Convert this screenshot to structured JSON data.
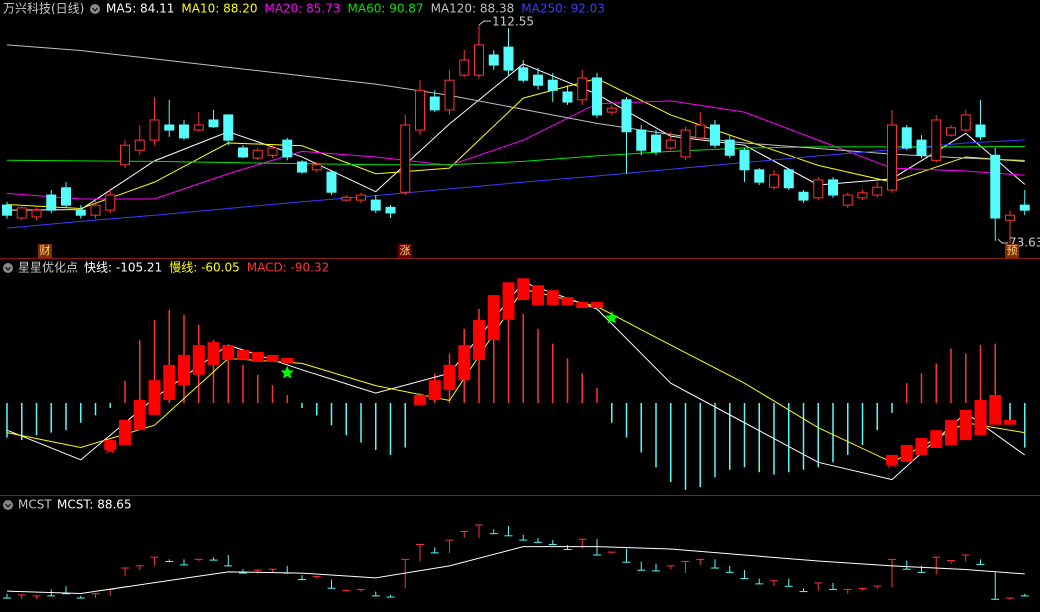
{
  "chart_data": [
    {
      "type": "candlestick",
      "title": "万兴科技(日线)",
      "up_color": "#ff3232",
      "down_color": "#54fcfc",
      "ylim": [
        70.96,
        114.34
      ],
      "candles": [
        [
          80.4,
          81.0,
          78.0,
          78.6
        ],
        [
          78.1,
          80.4,
          77.7,
          79.9
        ],
        [
          78.3,
          80.0,
          77.7,
          79.5
        ],
        [
          82.2,
          83.1,
          79.0,
          79.5
        ],
        [
          83.5,
          84.5,
          80.0,
          80.4
        ],
        [
          79.5,
          80.4,
          78.0,
          78.6
        ],
        [
          78.6,
          81.3,
          78.0,
          80.4
        ],
        [
          79.5,
          83.1,
          79.0,
          82.2
        ],
        [
          87.6,
          92.0,
          87.0,
          91.1
        ],
        [
          90.2,
          94.7,
          89.3,
          92.0
        ],
        [
          92.0,
          99.7,
          91.1,
          95.6
        ],
        [
          94.7,
          99.2,
          92.6,
          93.8
        ],
        [
          94.7,
          95.6,
          92.0,
          92.4
        ],
        [
          93.8,
          97.0,
          93.5,
          94.7
        ],
        [
          95.6,
          97.4,
          94.2,
          94.4
        ],
        [
          96.5,
          96.5,
          91.1,
          92.0
        ],
        [
          90.6,
          91.1,
          88.8,
          89.0
        ],
        [
          88.8,
          90.6,
          88.4,
          90.2
        ],
        [
          89.3,
          91.1,
          88.8,
          90.6
        ],
        [
          92.0,
          92.4,
          88.4,
          89.0
        ],
        [
          88.1,
          88.4,
          86.0,
          86.3
        ],
        [
          86.7,
          88.1,
          86.3,
          87.6
        ],
        [
          86.3,
          86.7,
          82.2,
          82.7
        ],
        [
          81.3,
          82.2,
          81.0,
          81.8
        ],
        [
          81.3,
          82.6,
          80.8,
          82.2
        ],
        [
          81.3,
          82.2,
          79.0,
          79.5
        ],
        [
          80.0,
          80.4,
          78.1,
          79.0
        ],
        [
          82.7,
          96.5,
          82.2,
          94.7
        ],
        [
          93.8,
          102.7,
          92.9,
          100.9
        ],
        [
          99.7,
          100.9,
          97.0,
          97.4
        ],
        [
          97.4,
          104.5,
          96.5,
          102.7
        ],
        [
          103.6,
          108.1,
          103.2,
          106.3
        ],
        [
          103.6,
          112.55,
          103.0,
          109.0
        ],
        [
          107.2,
          108.1,
          104.5,
          105.4
        ],
        [
          108.6,
          112.0,
          103.6,
          104.5
        ],
        [
          104.9,
          106.3,
          102.3,
          102.7
        ],
        [
          103.6,
          104.9,
          101.0,
          101.8
        ],
        [
          102.7,
          104.0,
          98.8,
          100.9
        ],
        [
          100.6,
          101.8,
          98.3,
          98.8
        ],
        [
          99.2,
          104.5,
          98.3,
          103.1
        ],
        [
          103.1,
          104.0,
          96.0,
          96.5
        ],
        [
          97.0,
          98.3,
          96.5,
          97.7
        ],
        [
          99.2,
          99.7,
          86.0,
          93.5
        ],
        [
          93.8,
          94.7,
          89.3,
          90.2
        ],
        [
          92.9,
          93.8,
          89.3,
          89.9
        ],
        [
          90.6,
          93.5,
          90.2,
          92.0
        ],
        [
          89.0,
          94.4,
          88.4,
          93.8
        ],
        [
          92.4,
          97.0,
          92.0,
          94.7
        ],
        [
          94.7,
          95.6,
          90.6,
          91.1
        ],
        [
          92.0,
          92.9,
          88.8,
          89.3
        ],
        [
          90.2,
          90.6,
          84.5,
          86.7
        ],
        [
          86.7,
          87.0,
          84.0,
          84.5
        ],
        [
          83.6,
          86.7,
          83.1,
          85.8
        ],
        [
          86.7,
          87.0,
          83.1,
          83.5
        ],
        [
          82.7,
          83.1,
          80.8,
          81.3
        ],
        [
          81.7,
          85.4,
          81.3,
          84.9
        ],
        [
          84.9,
          85.4,
          81.7,
          82.2
        ],
        [
          80.4,
          82.6,
          79.9,
          82.2
        ],
        [
          81.7,
          83.1,
          81.3,
          82.6
        ],
        [
          82.2,
          84.5,
          81.7,
          83.6
        ],
        [
          83.1,
          97.4,
          82.6,
          94.7
        ],
        [
          94.2,
          94.7,
          90.2,
          90.6
        ],
        [
          92.0,
          92.9,
          88.8,
          89.3
        ],
        [
          88.4,
          96.5,
          88.0,
          95.6
        ],
        [
          92.9,
          94.7,
          92.6,
          94.2
        ],
        [
          93.8,
          97.4,
          93.5,
          96.5
        ],
        [
          94.7,
          99.2,
          92.0,
          92.6
        ],
        [
          89.3,
          90.6,
          74.0,
          78.1
        ],
        [
          77.7,
          79.5,
          73.63,
          78.6
        ],
        [
          80.4,
          83.1,
          78.6,
          79.5
        ]
      ],
      "series": [
        {
          "name": "MA5: 84.11",
          "color": "#ffffff",
          "x": [
            0,
            5,
            10,
            15,
            20,
            25,
            30,
            35,
            40,
            45,
            50,
            55,
            60,
            65,
            69
          ],
          "values": [
            79.5,
            79.6,
            88.3,
            93.5,
            89.0,
            82.8,
            94.9,
            105.6,
            100.2,
            92.7,
            91.1,
            84.0,
            85.1,
            93.2,
            84.11
          ]
        },
        {
          "name": "MA10: 88.20",
          "color": "#ffff00",
          "x": [
            0,
            5,
            10,
            15,
            20,
            25,
            30,
            35,
            40,
            45,
            50,
            55,
            60,
            65,
            69
          ],
          "values": [
            80.5,
            79.8,
            84.5,
            91.5,
            91.0,
            86.0,
            87.0,
            99.5,
            103.0,
            96.5,
            92.0,
            87.5,
            84.5,
            89.0,
            88.2
          ]
        },
        {
          "name": "MA20: 85.73",
          "color": "#ff00ff",
          "x": [
            0,
            5,
            10,
            15,
            20,
            25,
            30,
            35,
            40,
            45,
            50,
            55,
            60,
            65,
            69
          ],
          "values": [
            82.5,
            81.5,
            81.5,
            86.0,
            90.0,
            89.0,
            87.5,
            92.0,
            98.5,
            99.0,
            97.0,
            92.0,
            87.0,
            86.5,
            85.73
          ]
        },
        {
          "name": "MA60: 90.87",
          "color": "#00e600",
          "x": [
            0,
            5,
            10,
            15,
            20,
            25,
            30,
            35,
            40,
            45,
            50,
            55,
            60,
            65,
            69
          ],
          "values": [
            88.4,
            88.3,
            88.2,
            88.0,
            87.8,
            87.6,
            87.6,
            88.2,
            89.2,
            90.0,
            90.6,
            90.8,
            90.8,
            90.8,
            90.87
          ]
        },
        {
          "name": "MA120: 88.38",
          "color": "#c0c0c0",
          "x": [
            0,
            5,
            10,
            15,
            20,
            25,
            30,
            35,
            40,
            45,
            50,
            55,
            60,
            65,
            69
          ],
          "values": [
            109.0,
            108.0,
            106.5,
            105.0,
            103.5,
            102.0,
            100.0,
            97.5,
            95.0,
            93.0,
            91.5,
            90.5,
            89.5,
            88.8,
            88.38
          ]
        },
        {
          "name": "MA250: 92.03",
          "color": "#3c3cff",
          "x": [
            0,
            5,
            10,
            15,
            20,
            25,
            30,
            35,
            40,
            45,
            50,
            55,
            60,
            65,
            69
          ],
          "values": [
            76.3,
            77.5,
            78.6,
            79.8,
            81.0,
            82.1,
            83.3,
            84.5,
            85.6,
            86.8,
            88.0,
            89.2,
            90.3,
            91.5,
            92.03
          ]
        }
      ],
      "markers": [
        "财",
        "涨",
        "预"
      ]
    },
    {
      "type": "macd",
      "title": "星星优化点",
      "ylim": [
        -180,
        285
      ],
      "histogram_name": "MACD: -90.32",
      "up_color": "#ff3232",
      "down_color": "#54fcfc",
      "block_color": "#ff0000",
      "histogram": [
        -70,
        -75,
        -65,
        -60,
        -55,
        -40,
        -25,
        -10,
        45,
        127,
        168,
        188,
        178,
        158,
        127,
        107,
        77,
        57,
        36,
        16,
        -10,
        -25,
        -45,
        -65,
        -80,
        -95,
        -105,
        -90,
        20,
        60,
        100,
        150,
        190,
        208,
        200,
        180,
        150,
        120,
        90,
        60,
        30,
        -40,
        -70,
        -100,
        -130,
        -160,
        -176,
        -170,
        -150,
        -135,
        -130,
        -140,
        -145,
        -140,
        -135,
        -130,
        -120,
        -105,
        -85,
        -55,
        -20,
        40,
        60,
        80,
        110,
        100,
        117,
        120,
        -40,
        -90.32
      ],
      "series": [
        {
          "name": "快线: -105.21",
          "color": "#ffffff",
          "x": [
            0,
            5,
            10,
            15,
            20,
            25,
            30,
            35,
            40,
            45,
            50,
            55,
            60,
            65,
            69
          ],
          "values": [
            -55,
            -115,
            10,
            117,
            67,
            20,
            60,
            244,
            190,
            40,
            -40,
            -120,
            -155,
            -20,
            -105.21
          ]
        },
        {
          "name": "慢线: -60.05",
          "color": "#ffff00",
          "x": [
            0,
            5,
            10,
            15,
            20,
            25,
            30,
            35,
            40,
            45,
            50,
            55,
            60,
            65,
            69
          ],
          "values": [
            -60,
            -90,
            -45,
            90,
            80,
            35,
            5,
            230,
            195,
            117,
            40,
            -50,
            -120,
            -40,
            -60.05
          ]
        }
      ],
      "blocks": {
        "x": [
          7,
          8,
          9,
          10,
          11,
          12,
          13,
          14,
          15,
          16,
          17,
          18,
          19,
          28,
          29,
          30,
          31,
          32,
          33,
          34,
          35,
          36,
          37,
          38,
          39,
          40,
          60,
          61,
          62,
          63,
          64,
          65,
          66,
          67,
          68
        ],
        "low": [
          -95,
          -85,
          -55,
          -24,
          6,
          36,
          57,
          77,
          87,
          87,
          83,
          83,
          81,
          -4,
          6,
          26,
          46,
          87,
          127,
          168,
          208,
          198,
          198,
          198,
          192,
          192,
          -125,
          -119,
          -105,
          -91,
          -85,
          -75,
          -65,
          -44,
          -44
        ],
        "high": [
          -75,
          -34,
          6,
          46,
          77,
          97,
          117,
          123,
          117,
          107,
          103,
          97,
          91,
          16,
          46,
          77,
          117,
          168,
          218,
          244,
          252,
          238,
          228,
          214,
          204,
          204,
          -105,
          -85,
          -71,
          -55,
          -34,
          -14,
          6,
          16,
          -34
        ]
      },
      "green_stars": {
        "color": "#00ff00",
        "x": [
          19,
          41
        ],
        "values": [
          61,
          172
        ]
      },
      "red_stars": {
        "color": "#ff0000",
        "x": [
          7,
          28,
          60
        ],
        "values": [
          -91,
          6,
          -119
        ]
      }
    },
    {
      "type": "mcst",
      "title": "MCST",
      "ylim": [
        72.8,
        119.4
      ],
      "series": [
        {
          "name": "MCST: 88.65",
          "color": "#ffffff",
          "x": [
            0,
            5,
            10,
            15,
            20,
            25,
            30,
            35,
            40,
            45,
            50,
            55,
            60,
            65,
            69
          ],
          "values": [
            81.5,
            80.5,
            85.0,
            89.5,
            89.0,
            87.0,
            92.0,
            100.0,
            100.0,
            99.0,
            96.5,
            94.0,
            92.0,
            90.5,
            88.65
          ]
        }
      ]
    }
  ]
}
